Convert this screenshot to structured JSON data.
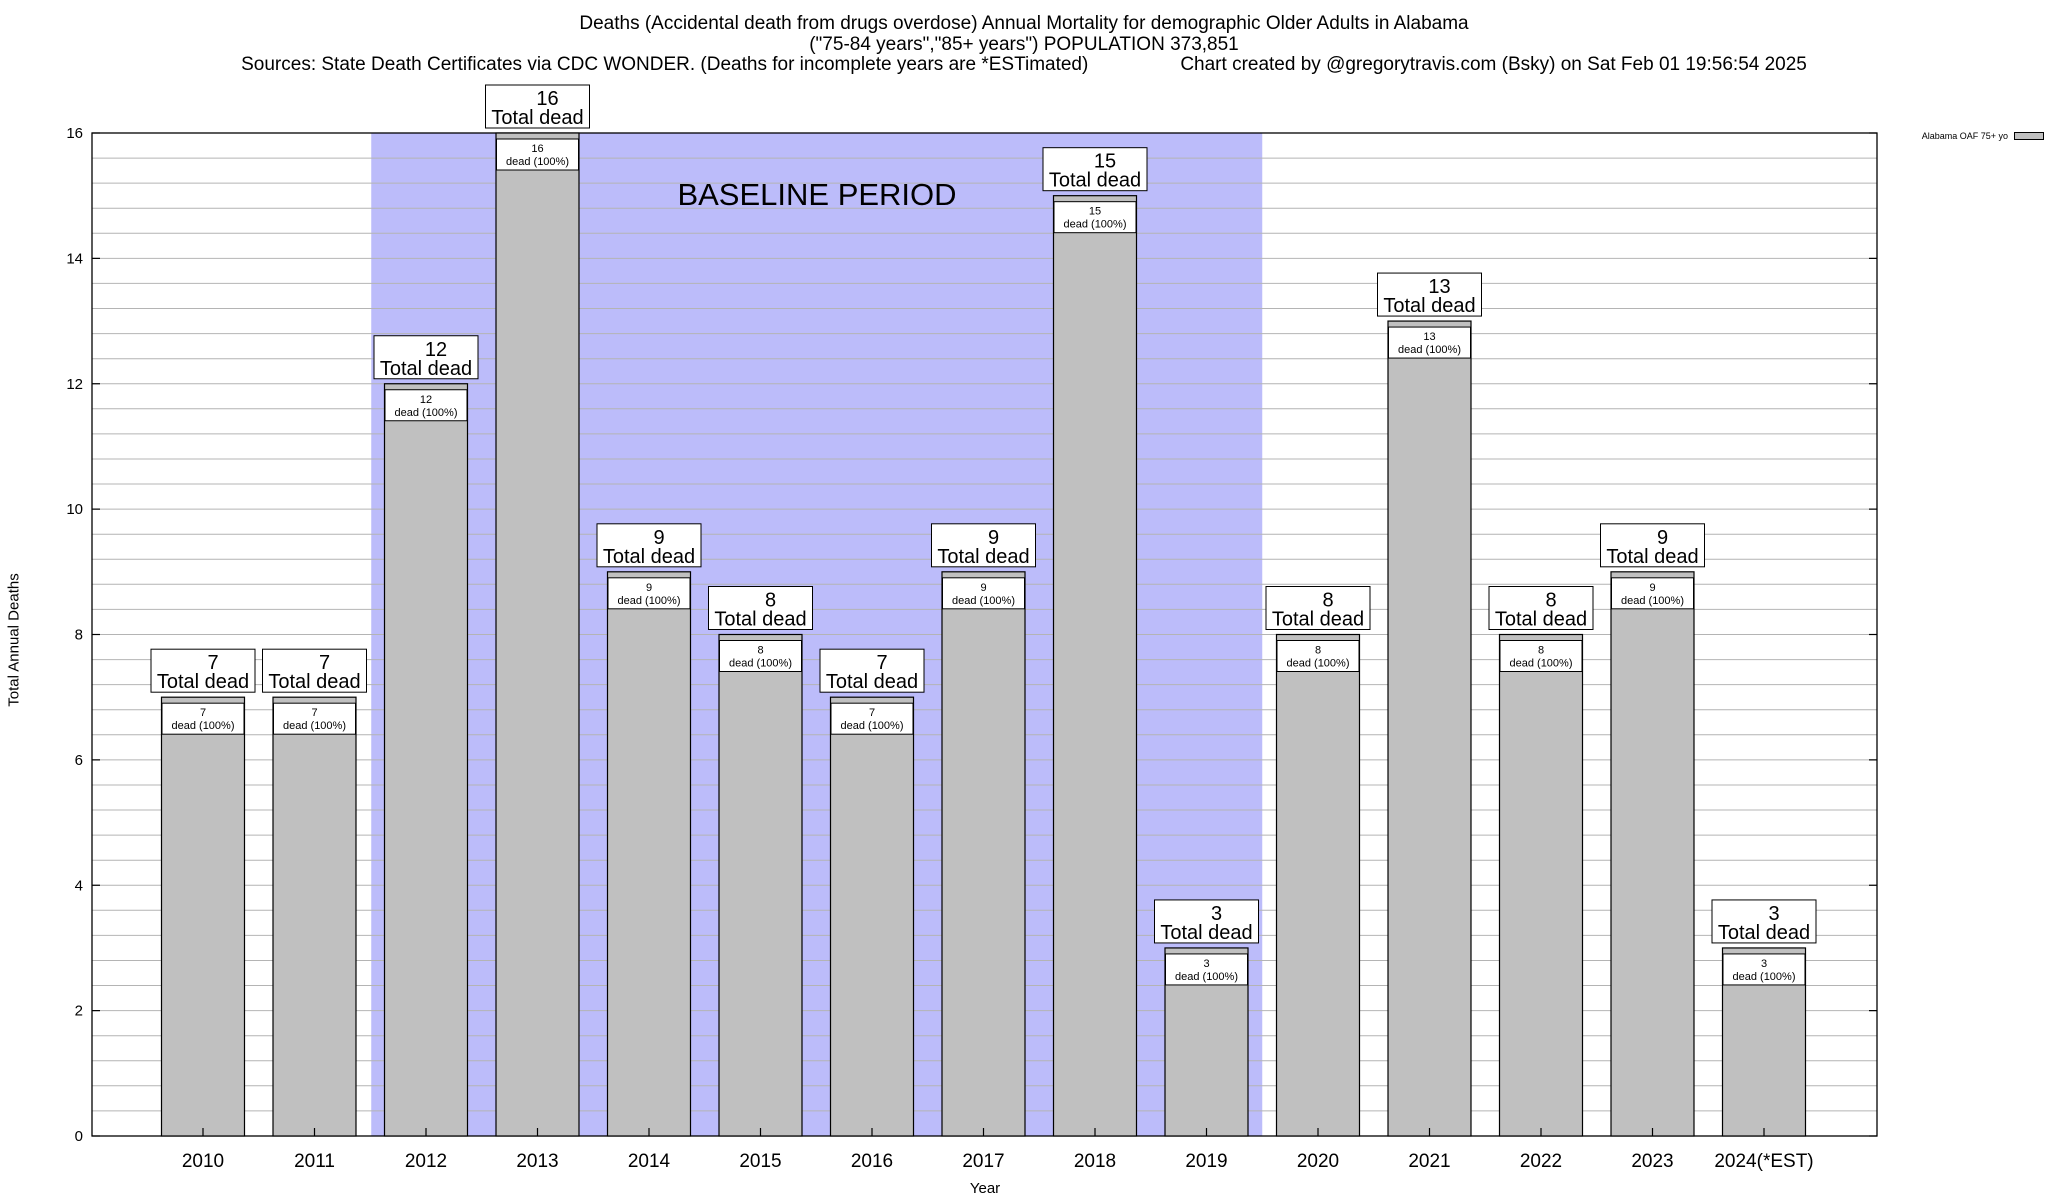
{
  "chart_data": {
    "type": "bar",
    "title": "Deaths (Accidental death from drugs overdose) Annual Mortality for demographic Older Adults in Alabama",
    "subtitle": "(\"75-84 years\",\"85+ years\") POPULATION 373,851",
    "source_line": "Sources: State Death Certificates via CDC WONDER. (Deaths for incomplete years are *ESTimated)",
    "credit_line": "Chart created by @gregorytravis.com (Bsky) on Sat Feb 01 19:56:54 2025",
    "xlabel": "Year",
    "ylabel": "Total Annual Deaths",
    "ylim": [
      0,
      16
    ],
    "yticks": [
      "0",
      "2",
      "4",
      "6",
      "8",
      "10",
      "12",
      "14",
      "16"
    ],
    "grid": true,
    "legend_position": "top-right",
    "categories": [
      "2010",
      "2011",
      "2012",
      "2013",
      "2014",
      "2015",
      "2016",
      "2017",
      "2018",
      "2019",
      "2020",
      "2021",
      "2022",
      "2023",
      "2024(*EST)"
    ],
    "series": [
      {
        "name": "Alabama OAF 75+ yo",
        "color": "#c0c0c0",
        "values": [
          7,
          7,
          12,
          16,
          9,
          8,
          7,
          9,
          15,
          3,
          8,
          13,
          8,
          9,
          3
        ]
      }
    ],
    "total_label": "Total dead",
    "inner_label": "dead (100%)",
    "baseline_period": {
      "label": "BASELINE PERIOD",
      "start_index": 2,
      "end_index": 9,
      "color": "#bcbcfa"
    }
  }
}
